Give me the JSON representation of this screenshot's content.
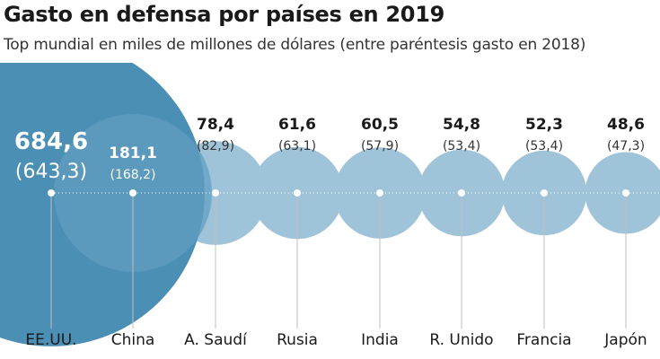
{
  "title": "Gasto en defensa por países en 2019",
  "subtitle": "Top mundial en miles de millones de dólares (entre paréntesis gasto en 2018)",
  "colors": {
    "main_bubble": "#4b8fb5",
    "second_bubble": "#6ea7c7",
    "other_bubbles": "#9fc3d8",
    "leader_line": "#bfbfbf",
    "dot": "#ffffff"
  },
  "chart_data": {
    "type": "bubble",
    "title": "Gasto en defensa por países en 2019",
    "subtitle": "Top mundial en miles de millones de dólares (entre paréntesis gasto en 2018)",
    "categories": [
      "EE.UU.",
      "China",
      "A. Saudí",
      "Rusia",
      "India",
      "R. Unido",
      "Francia",
      "Japón"
    ],
    "series": [
      {
        "name": "2019",
        "values": [
          684.6,
          181.1,
          78.4,
          61.6,
          60.5,
          54.8,
          52.3,
          48.6
        ]
      },
      {
        "name": "2018",
        "values": [
          643.3,
          168.2,
          82.9,
          63.1,
          57.9,
          53.4,
          53.4,
          47.3
        ]
      }
    ],
    "labels_2019": [
      "684,6",
      "181,1",
      "78,4",
      "61,6",
      "60,5",
      "54,8",
      "52,3",
      "48,6"
    ],
    "labels_2018": [
      "(643,3)",
      "(168,2)",
      "(82,9)",
      "(63,1)",
      "(57,9)",
      "(53,4)",
      "(53,4)",
      "(47,3)"
    ]
  }
}
